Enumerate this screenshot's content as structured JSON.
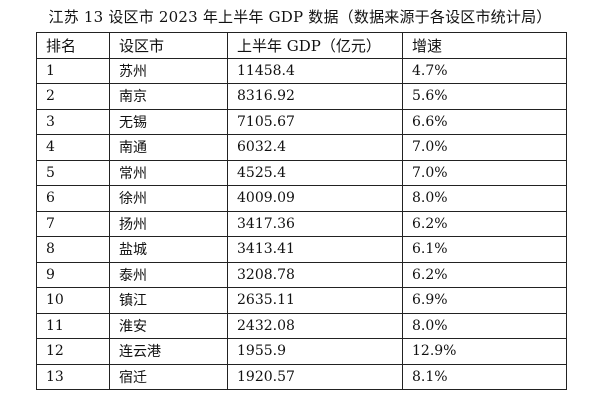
{
  "title": "江苏 13 设区市 2023 年上半年 GDP 数据（数据来源于各设区市统计局）",
  "columns": [
    "排名",
    "设区市",
    "上半年 GDP（亿元）",
    "增速"
  ],
  "rows": [
    {
      "rank": "1",
      "city": "苏州",
      "gdp": "11458.4",
      "growth": "4.7%"
    },
    {
      "rank": "2",
      "city": "南京",
      "gdp": "8316.92",
      "growth": "5.6%"
    },
    {
      "rank": "3",
      "city": "无锡",
      "gdp": "7105.67",
      "growth": "6.6%"
    },
    {
      "rank": "4",
      "city": "南通",
      "gdp": "6032.4",
      "growth": "7.0%"
    },
    {
      "rank": "5",
      "city": "常州",
      "gdp": "4525.4",
      "growth": "7.0%"
    },
    {
      "rank": "6",
      "city": "徐州",
      "gdp": "4009.09",
      "growth": "8.0%"
    },
    {
      "rank": "7",
      "city": "扬州",
      "gdp": "3417.36",
      "growth": "6.2%"
    },
    {
      "rank": "8",
      "city": "盐城",
      "gdp": "3413.41",
      "growth": "6.1%"
    },
    {
      "rank": "9",
      "city": "泰州",
      "gdp": "3208.78",
      "growth": "6.2%"
    },
    {
      "rank": "10",
      "city": "镇江",
      "gdp": "2635.11",
      "growth": "6.9%"
    },
    {
      "rank": "11",
      "city": "淮安",
      "gdp": "2432.08",
      "growth": "8.0%"
    },
    {
      "rank": "12",
      "city": "连云港",
      "gdp": "1955.9",
      "growth": "12.9%"
    },
    {
      "rank": "13",
      "city": "宿迁",
      "gdp": "1920.57",
      "growth": "8.1%"
    }
  ]
}
